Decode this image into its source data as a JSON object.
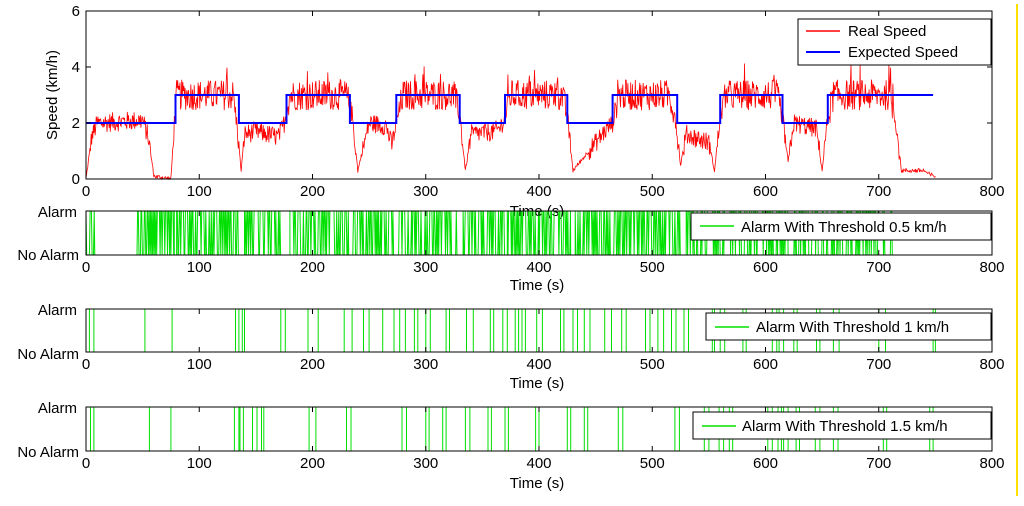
{
  "chart_data": [
    {
      "type": "line",
      "xlabel": "Time (s)",
      "ylabel": "Speed (km/h)",
      "xlim": [
        0,
        800
      ],
      "ylim": [
        0,
        6
      ],
      "xticks": [
        0,
        100,
        200,
        300,
        400,
        500,
        600,
        700,
        800
      ],
      "yticks": [
        0,
        2,
        4,
        6
      ],
      "grid": false,
      "legend_position": "top-right",
      "colors": {
        "real": "#ff0000",
        "expected": "#0000ff"
      },
      "series": [
        {
          "name": "Real Speed",
          "style": "noisy",
          "x": [
            0,
            5,
            10,
            50,
            55,
            60,
            75,
            78,
            80,
            130,
            133,
            137,
            140,
            150,
            170,
            175,
            180,
            230,
            235,
            240,
            250,
            265,
            270,
            275,
            280,
            325,
            330,
            335,
            340,
            360,
            365,
            370,
            375,
            420,
            425,
            430,
            460,
            465,
            470,
            515,
            520,
            525,
            530,
            550,
            555,
            560,
            565,
            610,
            615,
            620,
            625,
            645,
            650,
            655,
            660,
            710,
            715,
            720,
            740,
            745,
            750
          ],
          "y": [
            0,
            1.5,
            2,
            2.1,
            1.5,
            0.1,
            0,
            2,
            3,
            3,
            2,
            0.3,
            1.6,
            1.7,
            1.5,
            2,
            3,
            3,
            2.3,
            0.3,
            2,
            1.9,
            1.2,
            2.2,
            3,
            3,
            2.3,
            0.3,
            1.6,
            1.7,
            1.8,
            2.2,
            3,
            3,
            2.3,
            0.3,
            1.8,
            2,
            3,
            3,
            2.3,
            0.5,
            1.6,
            1.3,
            0.3,
            2.2,
            3,
            3,
            2.2,
            0.6,
            2,
            1.8,
            0.3,
            2.2,
            3,
            3,
            2.1,
            0.3,
            0.3,
            0.15,
            0.1
          ]
        },
        {
          "name": "Expected Speed",
          "style": "step",
          "x": [
            0,
            79,
            79,
            135,
            135,
            177,
            177,
            233,
            233,
            274,
            274,
            330,
            330,
            370,
            370,
            425,
            425,
            465,
            465,
            522,
            522,
            560,
            560,
            615,
            615,
            655,
            655,
            748
          ],
          "y": [
            2,
            2,
            3,
            3,
            2,
            2,
            3,
            3,
            2,
            2,
            3,
            3,
            2,
            2,
            3,
            3,
            2,
            2,
            3,
            3,
            2,
            2,
            3,
            3,
            2,
            2,
            3,
            3
          ]
        }
      ]
    },
    {
      "type": "line",
      "xlabel": "Time (s)",
      "xlim": [
        0,
        800
      ],
      "xticks": [
        0,
        100,
        200,
        300,
        400,
        500,
        600,
        700,
        800
      ],
      "ytick_labels": [
        "No Alarm",
        "Alarm"
      ],
      "legend_position": "right",
      "colors": {
        "alarm": "#00e000"
      },
      "series": [
        {
          "name": "Alarm With Threshold 0.5 km/h",
          "style": "binary-dense",
          "active_intervals": [
            [
              0,
              8
            ],
            [
              45,
              78
            ],
            [
              80,
              135
            ],
            [
              140,
              175
            ],
            [
              180,
              232
            ],
            [
              235,
              272
            ],
            [
              276,
              330
            ],
            [
              333,
              370
            ],
            [
              372,
              428
            ],
            [
              432,
              463
            ],
            [
              466,
              525
            ],
            [
              530,
              560
            ],
            [
              562,
              620
            ],
            [
              625,
              655
            ],
            [
              658,
              712
            ]
          ],
          "density": 0.55
        }
      ]
    },
    {
      "type": "line",
      "xlabel": "Time (s)",
      "xlim": [
        0,
        800
      ],
      "xticks": [
        0,
        100,
        200,
        300,
        400,
        500,
        600,
        700,
        800
      ],
      "ytick_labels": [
        "No Alarm",
        "Alarm"
      ],
      "legend_position": "right",
      "colors": {
        "alarm": "#00e000"
      },
      "series": [
        {
          "name": "Alarm With Threshold 1 km/h",
          "style": "binary-sparse",
          "intervals": [
            [
              3,
              7
            ],
            [
              52,
              76
            ],
            [
              132,
              135
            ],
            [
              138,
              140
            ],
            [
              172,
              176
            ],
            [
              196,
              205
            ],
            [
              228,
              235
            ],
            [
              245,
              250
            ],
            [
              262,
              272
            ],
            [
              277,
              282
            ],
            [
              290,
              293
            ],
            [
              300,
              304
            ],
            [
              318,
              321
            ],
            [
              336,
              342
            ],
            [
              357,
              360
            ],
            [
              368,
              372
            ],
            [
              379,
              382
            ],
            [
              385,
              388
            ],
            [
              398,
              403
            ],
            [
              419,
              422
            ],
            [
              430,
              434
            ],
            [
              440,
              445
            ],
            [
              458,
              464
            ],
            [
              473,
              477
            ],
            [
              494,
              498
            ],
            [
              505,
              510
            ],
            [
              517,
              521
            ],
            [
              528,
              532
            ],
            [
              553,
              555
            ],
            [
              560,
              564
            ],
            [
              580,
              583
            ],
            [
              606,
              610
            ],
            [
              612,
              616
            ],
            [
              625,
              628
            ],
            [
              645,
              648
            ],
            [
              660,
              665
            ],
            [
              700,
              706
            ],
            [
              748,
              750
            ]
          ]
        }
      ]
    },
    {
      "type": "line",
      "xlabel": "Time (s)",
      "xlim": [
        0,
        800
      ],
      "xticks": [
        0,
        100,
        200,
        300,
        400,
        500,
        600,
        700,
        800
      ],
      "ytick_labels": [
        "No Alarm",
        "Alarm"
      ],
      "legend_position": "right",
      "colors": {
        "alarm": "#00e000"
      },
      "series": [
        {
          "name": "Alarm With Threshold 1.5 km/h",
          "style": "binary-sparse",
          "intervals": [
            [
              4,
              7
            ],
            [
              56,
              75
            ],
            [
              131,
              135
            ],
            [
              136,
              139
            ],
            [
              147,
              151
            ],
            [
              155,
              157
            ],
            [
              197,
              203
            ],
            [
              230,
              234
            ],
            [
              279,
              283
            ],
            [
              300,
              303
            ],
            [
              315,
              318
            ],
            [
              335,
              339
            ],
            [
              355,
              358
            ],
            [
              370,
              373
            ],
            [
              397,
              400
            ],
            [
              425,
              428
            ],
            [
              440,
              443
            ],
            [
              470,
              474
            ],
            [
              520,
              524
            ],
            [
              546,
              550
            ],
            [
              559,
              563
            ],
            [
              568,
              571
            ],
            [
              602,
              606
            ],
            [
              611,
              614
            ],
            [
              616,
              620
            ],
            [
              627,
              630
            ],
            [
              644,
              648
            ],
            [
              660,
              664
            ],
            [
              704,
              707
            ],
            [
              745,
              748
            ]
          ]
        }
      ]
    }
  ]
}
